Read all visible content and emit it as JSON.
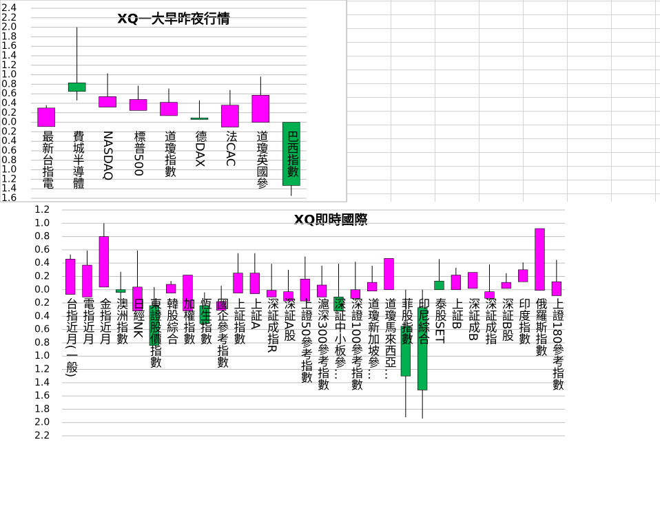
{
  "chart_data": [
    {
      "type": "candlestick",
      "title": "XQ一大早昨夜行情",
      "categories": [
        "最新台指電",
        "費城半導體",
        "NASDAQ",
        "標普500",
        "道瓊指數",
        "德DAX",
        "法CAC",
        "道瓊英國參",
        "巴西指數"
      ],
      "open": [
        -0.09,
        0.83,
        0.32,
        0.25,
        0.14,
        0.09,
        -0.1,
        0.0,
        0.0
      ],
      "close": [
        0.3,
        0.65,
        0.54,
        0.48,
        0.42,
        0.06,
        0.36,
        0.57,
        -1.33
      ],
      "high": [
        0.36,
        2.0,
        1.03,
        0.77,
        0.71,
        0.46,
        0.68,
        0.96,
        0.0
      ],
      "low": [
        -0.09,
        0.46,
        0.32,
        0.25,
        0.14,
        0.06,
        -0.1,
        0.0,
        -1.55
      ],
      "up_color": "#ff00ff",
      "down_color": "#00b050",
      "negative_label_color": "#e00000",
      "ylim": [
        -1.6,
        2.4
      ],
      "yticks": [
        2.4,
        2.2,
        {
          "value": 2.0,
          "label": "2.0"
        },
        1.8,
        1.6,
        1.4,
        1.2,
        {
          "value": 1.0,
          "label": "1.0"
        },
        0.8,
        0.6,
        0.4,
        0.2,
        {
          "value": 0,
          "label": "0.0"
        },
        {
          "value": -0.2,
          "label": "0.2"
        },
        {
          "value": -0.4,
          "label": "0.4"
        },
        {
          "value": -0.6,
          "label": "0.6"
        },
        {
          "value": -0.8,
          "label": "0.8"
        },
        {
          "value": -1.0,
          "label": "1.0"
        },
        {
          "value": -1.2,
          "label": "1.2"
        },
        {
          "value": -1.4,
          "label": "1.4"
        },
        {
          "value": -1.6,
          "label": "1.6"
        }
      ],
      "grid": true
    },
    {
      "type": "candlestick",
      "title": "XQ即時國際",
      "categories": [
        "台指近月(一般)",
        "電指近月",
        "金指近月",
        "澳洲指數",
        "日經NK",
        "東證股價指數",
        "韓股綜合",
        "加權指數",
        "恆生指數",
        "國企參考指數",
        "上証指數",
        "上証A",
        "深証成指R",
        "深証A股",
        "上證50參考指數",
        "滬深300參考指數",
        "深証中小板參…",
        "深證100參考指數",
        "道瓊新加坡參…",
        "道瓊馬來西亞…",
        "菲股指數",
        "印尼綜合",
        "泰股SET",
        "上証B",
        "深証成B",
        "深証成指",
        "深証B股",
        "印度指數",
        "俄羅斯指數",
        "上證180參考指數"
      ],
      "open": [
        -0.07,
        -0.11,
        0.04,
        0.0,
        -0.32,
        -0.24,
        -0.05,
        -0.32,
        -0.24,
        -0.31,
        -0.05,
        -0.06,
        -0.11,
        -0.17,
        -0.17,
        -0.11,
        -0.11,
        -0.13,
        -0.02,
        0.0,
        -0.55,
        -0.27,
        0.13,
        0.0,
        0.02,
        -0.13,
        0.02,
        0.12,
        -0.01,
        -0.09
      ],
      "close": [
        0.46,
        0.37,
        0.8,
        -0.04,
        0.04,
        -0.84,
        0.08,
        0.22,
        -0.51,
        -0.18,
        0.25,
        0.25,
        -0.01,
        -0.03,
        0.16,
        0.07,
        -0.32,
        0.0,
        0.11,
        0.47,
        -1.3,
        -1.51,
        0.0,
        0.22,
        0.26,
        -0.03,
        0.11,
        0.3,
        0.92,
        0.12
      ],
      "high": [
        0.53,
        0.59,
        1.0,
        0.27,
        0.59,
        0.04,
        0.13,
        0.22,
        -0.04,
        0.06,
        0.55,
        0.55,
        0.39,
        0.3,
        0.5,
        0.36,
        0.39,
        0.42,
        0.36,
        0.47,
        0.0,
        0.0,
        0.46,
        0.33,
        0.26,
        0.38,
        0.25,
        0.41,
        0.92,
        0.45
      ],
      "low": [
        -0.07,
        -0.11,
        0.04,
        -0.18,
        -0.32,
        -0.84,
        -0.05,
        -0.32,
        -0.51,
        -0.31,
        -0.05,
        -0.06,
        -0.11,
        -0.17,
        -0.17,
        -0.11,
        -0.32,
        -0.13,
        -0.02,
        0.0,
        -1.92,
        -1.94,
        0.0,
        0.0,
        0.02,
        -0.13,
        0.02,
        0.12,
        -0.01,
        -0.09
      ],
      "up_color": "#ff00ff",
      "down_color": "#00b050",
      "negative_label_color": "#e00000",
      "ylim": [
        -2.2,
        1.2
      ],
      "yticks": [
        1.2,
        {
          "value": 1.0,
          "label": "1.0"
        },
        0.8,
        0.6,
        0.4,
        0.2,
        {
          "value": 0,
          "label": "0.0"
        },
        {
          "value": -0.2,
          "label": "0.2"
        },
        {
          "value": -0.4,
          "label": "0.4"
        },
        {
          "value": -0.6,
          "label": "0.6"
        },
        {
          "value": -0.8,
          "label": "0.8"
        },
        {
          "value": -1.0,
          "label": "1.0"
        },
        {
          "value": -1.2,
          "label": "1.2"
        },
        {
          "value": -1.4,
          "label": "1.4"
        },
        {
          "value": -1.6,
          "label": "1.6"
        },
        {
          "value": -1.8,
          "label": "1.8"
        },
        {
          "value": -2.0,
          "label": "2.0"
        },
        {
          "value": -2.2,
          "label": "2.2"
        }
      ],
      "grid": true
    }
  ]
}
